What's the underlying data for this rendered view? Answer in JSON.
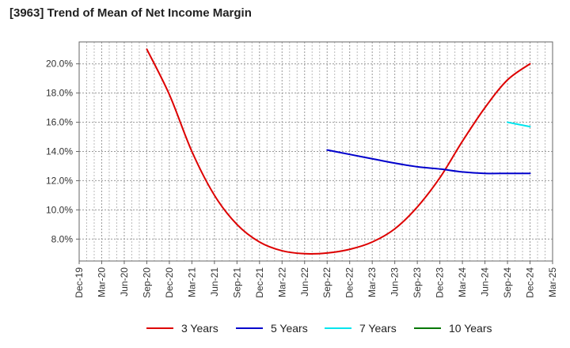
{
  "title": "[3963]  Trend of Mean of Net Income Margin",
  "chart_data": {
    "type": "line",
    "title": "[3963]  Trend of Mean of Net Income Margin",
    "xlabel": "",
    "ylabel": "",
    "x_ticks": [
      "Dec-19",
      "Mar-20",
      "Jun-20",
      "Sep-20",
      "Dec-20",
      "Mar-21",
      "Jun-21",
      "Sep-21",
      "Dec-21",
      "Mar-22",
      "Jun-22",
      "Sep-22",
      "Dec-22",
      "Mar-23",
      "Jun-23",
      "Sep-23",
      "Dec-23",
      "Mar-24",
      "Jun-24",
      "Sep-24",
      "Dec-24",
      "Mar-25"
    ],
    "y_ticks": [
      "8.0%",
      "10.0%",
      "12.0%",
      "14.0%",
      "16.0%",
      "18.0%",
      "20.0%"
    ],
    "y_tick_values": [
      8,
      10,
      12,
      14,
      16,
      18,
      20
    ],
    "ylim": [
      6.5,
      21.5
    ],
    "grid": true,
    "legend_position": "bottom",
    "series": [
      {
        "name": "3 Years",
        "color": "#dd0000",
        "x": [
          "Sep-20",
          "Dec-20",
          "Mar-21",
          "Jun-21",
          "Sep-21",
          "Dec-21",
          "Mar-22",
          "Jun-22",
          "Sep-22",
          "Dec-22",
          "Mar-23",
          "Jun-23",
          "Sep-23",
          "Dec-23",
          "Mar-24",
          "Jun-24",
          "Sep-24",
          "Dec-24"
        ],
        "values": [
          21.0,
          17.9,
          14.0,
          11.0,
          9.0,
          7.8,
          7.2,
          7.0,
          7.05,
          7.3,
          7.8,
          8.7,
          10.2,
          12.2,
          14.7,
          17.0,
          18.9,
          20.0
        ]
      },
      {
        "name": "5 Years",
        "color": "#0000cc",
        "x": [
          "Sep-22",
          "Dec-22",
          "Mar-23",
          "Jun-23",
          "Sep-23",
          "Dec-23",
          "Mar-24",
          "Jun-24",
          "Sep-24",
          "Dec-24"
        ],
        "values": [
          14.1,
          13.8,
          13.5,
          13.2,
          12.95,
          12.8,
          12.6,
          12.5,
          12.5,
          12.5
        ]
      },
      {
        "name": "7 Years",
        "color": "#00e5ee",
        "x": [
          "Sep-24",
          "Dec-24"
        ],
        "values": [
          16.0,
          15.7
        ]
      },
      {
        "name": "10 Years",
        "color": "#007700",
        "x": [],
        "values": []
      }
    ]
  }
}
